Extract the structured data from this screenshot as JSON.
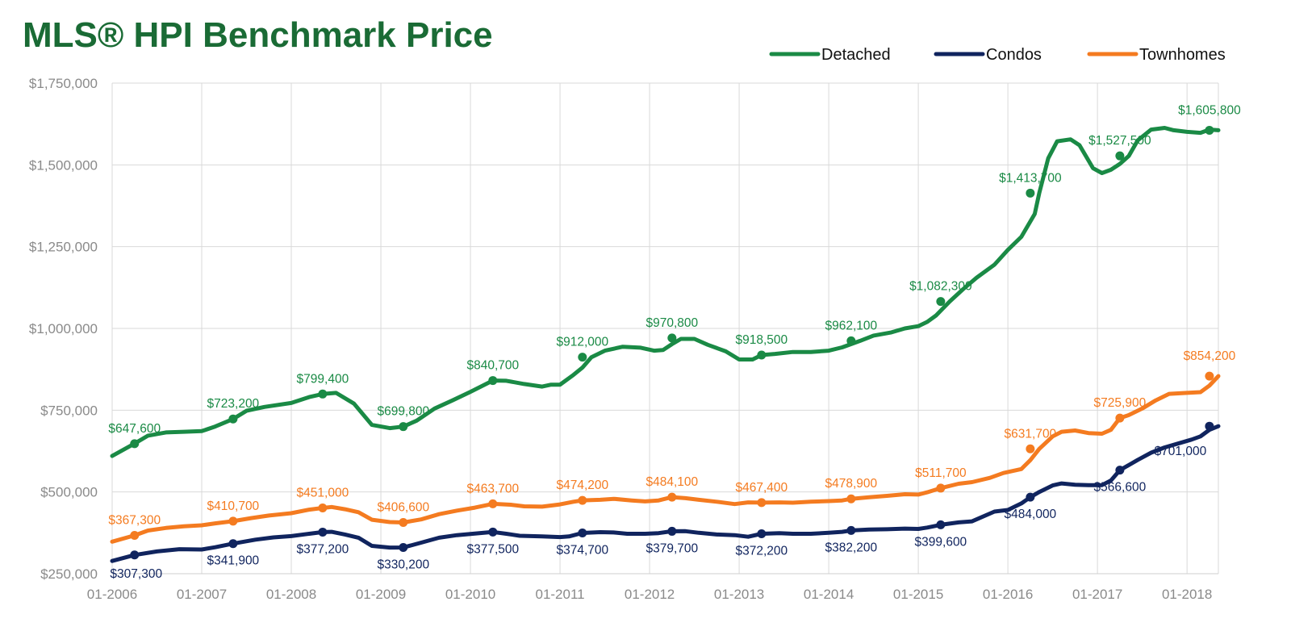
{
  "chart_data": {
    "type": "line",
    "title": "MLS® HPI Benchmark Price",
    "ylim": [
      250000,
      1750000
    ],
    "y_ticks": [
      "$250,000",
      "$500,000",
      "$750,000",
      "$1,000,000",
      "$1,250,000",
      "$1,500,000",
      "$1,750,000"
    ],
    "x_ticks": [
      "01-2006",
      "01-2007",
      "01-2008",
      "01-2009",
      "01-2010",
      "01-2011",
      "01-2012",
      "01-2013",
      "01-2014",
      "01-2015",
      "01-2016",
      "01-2017",
      "01-2018"
    ],
    "grid": true,
    "legend_position": "top-right",
    "series": [
      {
        "name": "Detached",
        "color": "#1a8a45",
        "points": [
          [
            2006.0,
            610000
          ],
          [
            2006.25,
            648000
          ],
          [
            2006.4,
            672000
          ],
          [
            2006.6,
            682000
          ],
          [
            2006.8,
            684000
          ],
          [
            2007.0,
            686000
          ],
          [
            2007.15,
            700000
          ],
          [
            2007.35,
            723000
          ],
          [
            2007.5,
            748000
          ],
          [
            2007.7,
            760000
          ],
          [
            2008.0,
            772000
          ],
          [
            2008.2,
            790000
          ],
          [
            2008.35,
            799400
          ],
          [
            2008.5,
            803000
          ],
          [
            2008.7,
            770000
          ],
          [
            2008.9,
            705000
          ],
          [
            2009.1,
            695000
          ],
          [
            2009.25,
            699800
          ],
          [
            2009.4,
            718000
          ],
          [
            2009.6,
            755000
          ],
          [
            2009.8,
            780000
          ],
          [
            2010.0,
            806000
          ],
          [
            2010.25,
            840700
          ],
          [
            2010.4,
            840000
          ],
          [
            2010.6,
            830000
          ],
          [
            2010.8,
            822000
          ],
          [
            2010.9,
            828000
          ],
          [
            2011.0,
            828000
          ],
          [
            2011.15,
            858000
          ],
          [
            2011.25,
            880000
          ],
          [
            2011.35,
            912000
          ],
          [
            2011.5,
            932000
          ],
          [
            2011.7,
            944000
          ],
          [
            2011.9,
            941000
          ],
          [
            2012.05,
            932000
          ],
          [
            2012.15,
            934000
          ],
          [
            2012.25,
            952000
          ],
          [
            2012.35,
            968000
          ],
          [
            2012.5,
            968000
          ],
          [
            2012.65,
            950000
          ],
          [
            2012.85,
            930000
          ],
          [
            2013.0,
            905000
          ],
          [
            2013.15,
            905000
          ],
          [
            2013.25,
            918500
          ],
          [
            2013.4,
            922000
          ],
          [
            2013.6,
            928000
          ],
          [
            2013.8,
            928000
          ],
          [
            2014.0,
            932000
          ],
          [
            2014.15,
            942000
          ],
          [
            2014.35,
            962100
          ],
          [
            2014.5,
            978000
          ],
          [
            2014.7,
            988000
          ],
          [
            2014.85,
            1000000
          ],
          [
            2015.0,
            1007000
          ],
          [
            2015.1,
            1020000
          ],
          [
            2015.2,
            1040000
          ],
          [
            2015.35,
            1082300
          ],
          [
            2015.5,
            1120000
          ],
          [
            2015.65,
            1155000
          ],
          [
            2015.85,
            1195000
          ],
          [
            2016.0,
            1240000
          ],
          [
            2016.15,
            1280000
          ],
          [
            2016.3,
            1350000
          ],
          [
            2016.35,
            1413700
          ],
          [
            2016.45,
            1520000
          ],
          [
            2016.55,
            1572000
          ],
          [
            2016.7,
            1578000
          ],
          [
            2016.8,
            1560000
          ],
          [
            2016.95,
            1490000
          ],
          [
            2017.05,
            1475000
          ],
          [
            2017.15,
            1485000
          ],
          [
            2017.25,
            1503000
          ],
          [
            2017.35,
            1527500
          ],
          [
            2017.45,
            1575000
          ],
          [
            2017.6,
            1608000
          ],
          [
            2017.75,
            1613000
          ],
          [
            2017.85,
            1606000
          ],
          [
            2018.0,
            1601000
          ],
          [
            2018.15,
            1598000
          ],
          [
            2018.25,
            1608000
          ],
          [
            2018.35,
            1605800
          ]
        ],
        "labels": [
          [
            2006.25,
            647600,
            "$647,600"
          ],
          [
            2007.35,
            723200,
            "$723,200"
          ],
          [
            2008.35,
            799400,
            "$799,400"
          ],
          [
            2009.25,
            699800,
            "$699,800"
          ],
          [
            2010.25,
            840700,
            "$840,700"
          ],
          [
            2011.25,
            912000,
            "$912,000"
          ],
          [
            2012.25,
            970800,
            "$970,800"
          ],
          [
            2013.25,
            918500,
            "$918,500"
          ],
          [
            2014.25,
            962100,
            "$962,100"
          ],
          [
            2015.25,
            1082300,
            "$1,082,300"
          ],
          [
            2016.25,
            1413700,
            "$1,413,700"
          ],
          [
            2017.25,
            1527500,
            "$1,527,500"
          ],
          [
            2018.25,
            1605800,
            "$1,605,800"
          ]
        ]
      },
      {
        "name": "Condos",
        "color": "#10245e",
        "points": [
          [
            2006.0,
            289000
          ],
          [
            2006.25,
            307300
          ],
          [
            2006.5,
            318000
          ],
          [
            2006.75,
            325000
          ],
          [
            2007.0,
            324000
          ],
          [
            2007.15,
            331000
          ],
          [
            2007.35,
            341900
          ],
          [
            2007.6,
            354000
          ],
          [
            2007.8,
            361000
          ],
          [
            2008.0,
            365000
          ],
          [
            2008.2,
            372000
          ],
          [
            2008.35,
            377200
          ],
          [
            2008.45,
            378000
          ],
          [
            2008.6,
            370000
          ],
          [
            2008.75,
            360000
          ],
          [
            2008.9,
            335000
          ],
          [
            2009.1,
            330000
          ],
          [
            2009.25,
            330200
          ],
          [
            2009.45,
            345000
          ],
          [
            2009.65,
            360000
          ],
          [
            2009.85,
            368000
          ],
          [
            2010.1,
            374000
          ],
          [
            2010.25,
            377500
          ],
          [
            2010.4,
            372000
          ],
          [
            2010.55,
            366000
          ],
          [
            2010.8,
            364000
          ],
          [
            2011.0,
            362000
          ],
          [
            2011.1,
            364000
          ],
          [
            2011.25,
            374700
          ],
          [
            2011.45,
            377000
          ],
          [
            2011.6,
            376000
          ],
          [
            2011.75,
            372000
          ],
          [
            2011.95,
            372000
          ],
          [
            2012.1,
            374000
          ],
          [
            2012.25,
            379700
          ],
          [
            2012.4,
            380000
          ],
          [
            2012.55,
            375000
          ],
          [
            2012.75,
            370000
          ],
          [
            2012.95,
            368000
          ],
          [
            2013.1,
            363000
          ],
          [
            2013.25,
            372200
          ],
          [
            2013.45,
            374000
          ],
          [
            2013.6,
            372000
          ],
          [
            2013.8,
            372000
          ],
          [
            2014.0,
            375000
          ],
          [
            2014.15,
            378000
          ],
          [
            2014.25,
            382200
          ],
          [
            2014.45,
            385000
          ],
          [
            2014.65,
            386000
          ],
          [
            2014.85,
            388000
          ],
          [
            2015.0,
            387000
          ],
          [
            2015.1,
            391000
          ],
          [
            2015.25,
            399600
          ],
          [
            2015.45,
            407000
          ],
          [
            2015.6,
            410000
          ],
          [
            2015.85,
            440000
          ],
          [
            2016.0,
            445000
          ],
          [
            2016.15,
            465000
          ],
          [
            2016.25,
            484000
          ],
          [
            2016.35,
            500000
          ],
          [
            2016.5,
            520000
          ],
          [
            2016.6,
            526000
          ],
          [
            2016.75,
            522000
          ],
          [
            2016.9,
            521000
          ],
          [
            2017.05,
            521000
          ],
          [
            2017.15,
            535000
          ],
          [
            2017.25,
            566600
          ],
          [
            2017.45,
            598000
          ],
          [
            2017.6,
            620000
          ],
          [
            2017.75,
            636000
          ],
          [
            2017.9,
            648000
          ],
          [
            2018.05,
            660000
          ],
          [
            2018.15,
            670000
          ],
          [
            2018.25,
            690000
          ],
          [
            2018.35,
            701000
          ]
        ],
        "labels": [
          [
            2006.25,
            307300,
            "$307,300"
          ],
          [
            2007.35,
            341900,
            "$341,900"
          ],
          [
            2008.35,
            377200,
            "$377,200"
          ],
          [
            2009.25,
            330200,
            "$330,200"
          ],
          [
            2010.25,
            377500,
            "$377,500"
          ],
          [
            2011.25,
            374700,
            "$374,700"
          ],
          [
            2012.25,
            379700,
            "$379,700"
          ],
          [
            2013.25,
            372200,
            "$372,200"
          ],
          [
            2014.25,
            382200,
            "$382,200"
          ],
          [
            2015.25,
            399600,
            "$399,600"
          ],
          [
            2016.25,
            484000,
            "$484,000"
          ],
          [
            2017.25,
            566600,
            "$566,600"
          ],
          [
            2018.25,
            701000,
            "$701,000"
          ]
        ]
      },
      {
        "name": "Townhomes",
        "color": "#f47b20",
        "points": [
          [
            2006.0,
            348000
          ],
          [
            2006.25,
            367300
          ],
          [
            2006.4,
            382000
          ],
          [
            2006.6,
            390000
          ],
          [
            2006.8,
            395000
          ],
          [
            2007.0,
            398000
          ],
          [
            2007.15,
            404000
          ],
          [
            2007.35,
            410700
          ],
          [
            2007.55,
            420000
          ],
          [
            2007.75,
            428000
          ],
          [
            2008.0,
            435000
          ],
          [
            2008.2,
            446000
          ],
          [
            2008.35,
            451000
          ],
          [
            2008.45,
            454000
          ],
          [
            2008.6,
            447000
          ],
          [
            2008.75,
            438000
          ],
          [
            2008.9,
            415000
          ],
          [
            2009.1,
            408000
          ],
          [
            2009.25,
            406600
          ],
          [
            2009.45,
            416000
          ],
          [
            2009.65,
            432000
          ],
          [
            2009.85,
            443000
          ],
          [
            2010.05,
            452000
          ],
          [
            2010.25,
            463700
          ],
          [
            2010.45,
            461000
          ],
          [
            2010.6,
            456000
          ],
          [
            2010.8,
            455000
          ],
          [
            2011.0,
            462000
          ],
          [
            2011.15,
            470000
          ],
          [
            2011.25,
            474200
          ],
          [
            2011.45,
            476000
          ],
          [
            2011.6,
            479000
          ],
          [
            2011.8,
            474000
          ],
          [
            2011.95,
            471000
          ],
          [
            2012.1,
            474000
          ],
          [
            2012.25,
            484100
          ],
          [
            2012.4,
            481000
          ],
          [
            2012.55,
            476000
          ],
          [
            2012.75,
            470000
          ],
          [
            2012.95,
            463000
          ],
          [
            2013.1,
            468000
          ],
          [
            2013.25,
            467400
          ],
          [
            2013.45,
            468000
          ],
          [
            2013.6,
            467000
          ],
          [
            2013.8,
            470000
          ],
          [
            2014.0,
            472000
          ],
          [
            2014.15,
            474000
          ],
          [
            2014.25,
            478900
          ],
          [
            2014.45,
            484000
          ],
          [
            2014.65,
            488000
          ],
          [
            2014.85,
            493000
          ],
          [
            2015.0,
            492000
          ],
          [
            2015.1,
            499000
          ],
          [
            2015.25,
            511700
          ],
          [
            2015.45,
            525000
          ],
          [
            2015.6,
            530000
          ],
          [
            2015.8,
            543000
          ],
          [
            2015.95,
            558000
          ],
          [
            2016.15,
            570000
          ],
          [
            2016.25,
            597000
          ],
          [
            2016.35,
            631700
          ],
          [
            2016.5,
            670000
          ],
          [
            2016.6,
            684000
          ],
          [
            2016.75,
            688000
          ],
          [
            2016.9,
            680000
          ],
          [
            2017.05,
            678000
          ],
          [
            2017.15,
            690000
          ],
          [
            2017.25,
            725900
          ],
          [
            2017.35,
            735000
          ],
          [
            2017.5,
            755000
          ],
          [
            2017.65,
            780000
          ],
          [
            2017.8,
            800000
          ],
          [
            2018.0,
            803000
          ],
          [
            2018.15,
            805000
          ],
          [
            2018.25,
            825000
          ],
          [
            2018.35,
            854200
          ]
        ],
        "labels": [
          [
            2006.25,
            367300,
            "$367,300"
          ],
          [
            2007.35,
            410700,
            "$410,700"
          ],
          [
            2008.35,
            451000,
            "$451,000"
          ],
          [
            2009.25,
            406600,
            "$406,600"
          ],
          [
            2010.25,
            463700,
            "$463,700"
          ],
          [
            2011.25,
            474200,
            "$474,200"
          ],
          [
            2012.25,
            484100,
            "$484,100"
          ],
          [
            2013.25,
            467400,
            "$467,400"
          ],
          [
            2014.25,
            478900,
            "$478,900"
          ],
          [
            2015.25,
            511700,
            "$511,700"
          ],
          [
            2016.25,
            631700,
            "$631,700"
          ],
          [
            2017.25,
            725900,
            "$725,900"
          ],
          [
            2018.25,
            854200,
            "$854,200"
          ]
        ]
      }
    ]
  }
}
